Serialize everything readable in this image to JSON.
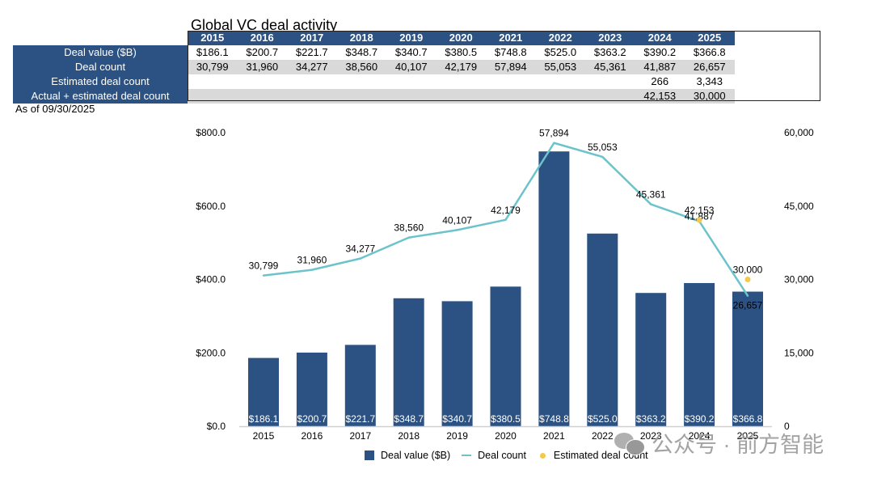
{
  "title": "Global VC deal activity",
  "as_of": "As of 09/30/2025",
  "table": {
    "years": [
      "2015",
      "2016",
      "2017",
      "2018",
      "2019",
      "2020",
      "2021",
      "2022",
      "2023",
      "2024",
      "2025"
    ],
    "rows": [
      {
        "label": "Deal value ($B)",
        "values": [
          "$186.1",
          "$200.7",
          "$221.7",
          "$348.7",
          "$340.7",
          "$380.5",
          "$748.8",
          "$525.0",
          "$363.2",
          "$390.2",
          "$366.8"
        ]
      },
      {
        "label": "Deal count",
        "values": [
          "30,799",
          "31,960",
          "34,277",
          "38,560",
          "40,107",
          "42,179",
          "57,894",
          "55,053",
          "45,361",
          "41,887",
          "26,657"
        ]
      },
      {
        "label": "Estimated deal count",
        "values": [
          "",
          "",
          "",
          "",
          "",
          "",
          "",
          "",
          "",
          "266",
          "3,343"
        ]
      },
      {
        "label": "Actual + estimated deal count",
        "values": [
          "",
          "",
          "",
          "",
          "",
          "",
          "",
          "",
          "",
          "42,153",
          "30,000"
        ]
      }
    ]
  },
  "colors": {
    "bar": "#2b5282",
    "line": "#6cc3cc",
    "estimate_dot": "#f2c94c",
    "header_bg": "#2b5282",
    "alt_row": "#d9d9d9"
  },
  "chart_data": {
    "type": "bar",
    "title": "Global VC deal activity",
    "categories": [
      "2015",
      "2016",
      "2017",
      "2018",
      "2019",
      "2020",
      "2021",
      "2022",
      "2023",
      "2024",
      "2025"
    ],
    "series": [
      {
        "name": "Deal value ($B)",
        "kind": "bar",
        "axis": "left",
        "values": [
          186.1,
          200.7,
          221.7,
          348.7,
          340.7,
          380.5,
          748.8,
          525.0,
          363.2,
          390.2,
          366.8
        ],
        "labels": [
          "$186.1",
          "$200.7",
          "$221.7",
          "$348.7",
          "$340.7",
          "$380.5",
          "$748.8",
          "$525.0",
          "$363.2",
          "$390.2",
          "$366.8"
        ]
      },
      {
        "name": "Deal count",
        "kind": "line",
        "axis": "right",
        "values": [
          30799,
          31960,
          34277,
          38560,
          40107,
          42179,
          57894,
          55053,
          45361,
          41887,
          26657
        ],
        "labels": [
          "30,799",
          "31,960",
          "34,277",
          "38,560",
          "40,107",
          "42,179",
          "57,894",
          "55,053",
          "45,361",
          "41,887",
          "26,657"
        ]
      },
      {
        "name": "Estimated deal count",
        "kind": "scatter",
        "axis": "right",
        "points": [
          {
            "x": "2024",
            "y": 42153,
            "label": "42,153"
          },
          {
            "x": "2025",
            "y": 30000,
            "label": "30,000"
          }
        ]
      }
    ],
    "y_left": {
      "range": [
        0,
        800
      ],
      "ticks": [
        0,
        200,
        400,
        600,
        800
      ],
      "tick_labels": [
        "$0.0",
        "$200.0",
        "$400.0",
        "$600.0",
        "$800.0"
      ]
    },
    "y_right": {
      "range": [
        0,
        60000
      ],
      "ticks": [
        0,
        15000,
        30000,
        45000,
        60000
      ],
      "tick_labels": [
        "0",
        "15,000",
        "30,000",
        "45,000",
        "60,000"
      ]
    },
    "xlabel": "",
    "ylabel": "",
    "grid": false,
    "legend": {
      "position": "bottom",
      "entries": [
        "Deal value ($B)",
        "Deal count",
        "Estimated deal count"
      ]
    }
  },
  "watermark": "公众号 · 前方智能"
}
